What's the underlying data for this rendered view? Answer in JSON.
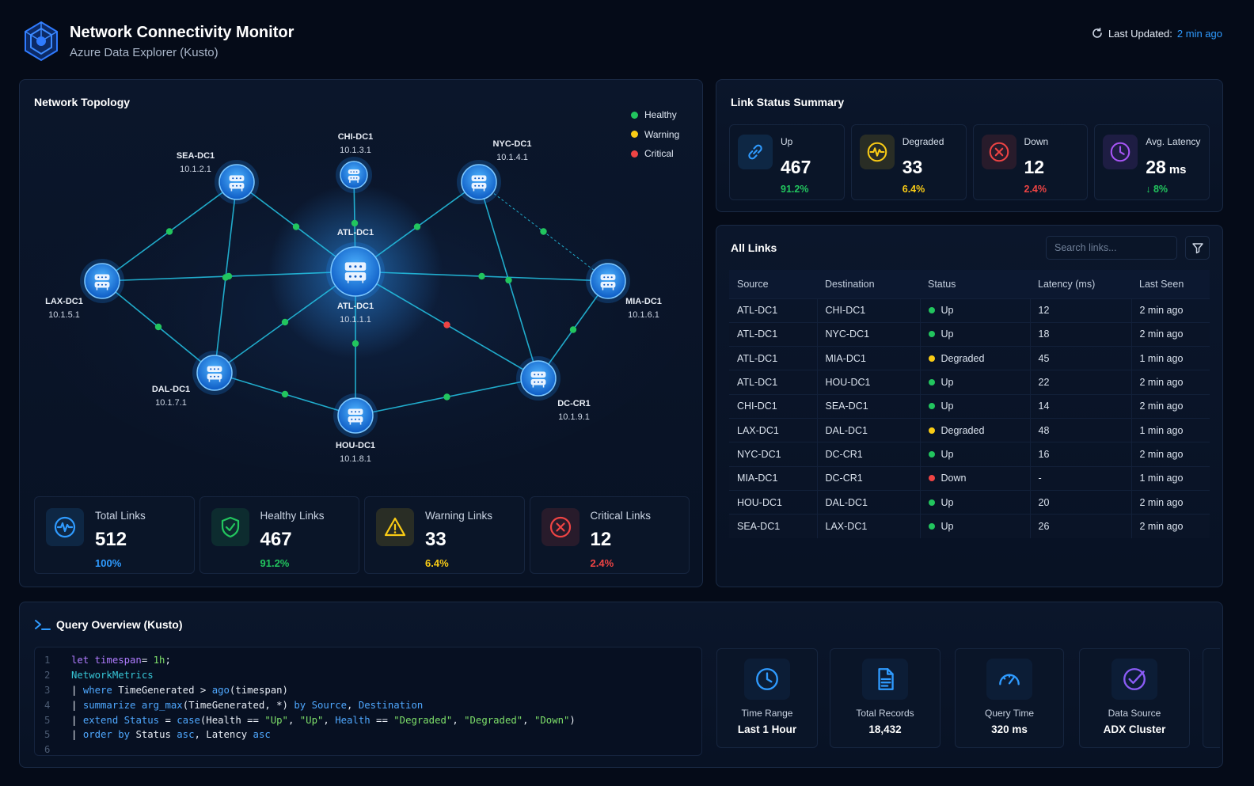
{
  "header": {
    "title": "Network Connectivity Monitor",
    "subtitle": "Azure Data Explorer (Kusto)",
    "last_updated_label": "Last Updated:",
    "last_updated_value": "2 min ago"
  },
  "topology": {
    "title": "Network Topology",
    "legend": [
      {
        "label": "Healthy",
        "color": "#22c55e"
      },
      {
        "label": "Warning",
        "color": "#facc15"
      },
      {
        "label": "Critical",
        "color": "#ef4444"
      }
    ],
    "nodes": [
      {
        "id": "ATL",
        "name": "ATL-DC1",
        "ip": "10.1.1.1"
      },
      {
        "id": "CHI",
        "name": "CHI-DC1",
        "ip": "10.1.3.1"
      },
      {
        "id": "SEA",
        "name": "SEA-DC1",
        "ip": "10.1.2.1"
      },
      {
        "id": "NYC",
        "name": "NYC-DC1",
        "ip": "10.1.4.1"
      },
      {
        "id": "LAX",
        "name": "LAX-DC1",
        "ip": "10.1.5.1"
      },
      {
        "id": "MIA",
        "name": "MIA-DC1",
        "ip": "10.1.6.1"
      },
      {
        "id": "DAL",
        "name": "DAL-DC1",
        "ip": "10.1.7.1"
      },
      {
        "id": "HOU",
        "name": "HOU-DC1",
        "ip": "10.1.8.1"
      },
      {
        "id": "DCR",
        "name": "DC-CR1",
        "ip": "10.1.9.1"
      }
    ],
    "links": [
      {
        "from": "ATL",
        "to": "CHI",
        "status": "healthy"
      },
      {
        "from": "ATL",
        "to": "SEA",
        "status": "healthy"
      },
      {
        "from": "ATL",
        "to": "NYC",
        "status": "healthy"
      },
      {
        "from": "ATL",
        "to": "LAX",
        "status": "healthy"
      },
      {
        "from": "ATL",
        "to": "MIA",
        "status": "healthy"
      },
      {
        "from": "ATL",
        "to": "DAL",
        "status": "healthy"
      },
      {
        "from": "ATL",
        "to": "HOU",
        "status": "healthy"
      },
      {
        "from": "ATL",
        "to": "DCR",
        "status": "critical"
      },
      {
        "from": "SEA",
        "to": "LAX",
        "status": "healthy"
      },
      {
        "from": "SEA",
        "to": "DAL",
        "status": "healthy"
      },
      {
        "from": "NYC",
        "to": "MIA",
        "status": "dashed"
      },
      {
        "from": "NYC",
        "to": "DCR",
        "status": "healthy"
      },
      {
        "from": "LAX",
        "to": "DAL",
        "status": "healthy"
      },
      {
        "from": "MIA",
        "to": "DCR",
        "status": "healthy"
      },
      {
        "from": "DAL",
        "to": "HOU",
        "status": "healthy"
      },
      {
        "from": "HOU",
        "to": "DCR",
        "status": "healthy"
      }
    ],
    "stats": [
      {
        "label": "Total Links",
        "value": "512",
        "pct": "100%",
        "color": "#2f9bff",
        "icon": "pulse-icon"
      },
      {
        "label": "Healthy Links",
        "value": "467",
        "pct": "91.2%",
        "color": "#22c55e",
        "icon": "shield-check-icon"
      },
      {
        "label": "Warning Links",
        "value": "33",
        "pct": "6.4%",
        "color": "#facc15",
        "icon": "warning-icon"
      },
      {
        "label": "Critical Links",
        "value": "12",
        "pct": "2.4%",
        "color": "#ef4444",
        "icon": "x-circle-icon"
      }
    ]
  },
  "link_summary": {
    "title": "Link Status Summary",
    "cards": [
      {
        "label": "Up",
        "value": "467",
        "unit": "",
        "pct": "91.2%",
        "color": "#22c55e",
        "icon": "link-icon"
      },
      {
        "label": "Degraded",
        "value": "33",
        "unit": "",
        "pct": "6.4%",
        "color": "#facc15",
        "icon": "pulse-icon"
      },
      {
        "label": "Down",
        "value": "12",
        "unit": "",
        "pct": "2.4%",
        "color": "#ef4444",
        "icon": "x-circle-icon"
      },
      {
        "label": "Avg. Latency",
        "value": "28",
        "unit": "ms",
        "pct": "↓ 8%",
        "color": "#22c55e",
        "icon": "clock-icon"
      }
    ]
  },
  "all_links": {
    "title": "All Links",
    "search_placeholder": "Search links...",
    "columns": [
      "Source",
      "Destination",
      "Status",
      "Latency (ms)",
      "Last Seen"
    ],
    "rows": [
      {
        "source": "ATL-DC1",
        "destination": "CHI-DC1",
        "status": "Up",
        "latency": "12",
        "last_seen": "2 min ago"
      },
      {
        "source": "ATL-DC1",
        "destination": "NYC-DC1",
        "status": "Up",
        "latency": "18",
        "last_seen": "2 min ago"
      },
      {
        "source": "ATL-DC1",
        "destination": "MIA-DC1",
        "status": "Degraded",
        "latency": "45",
        "last_seen": "1 min ago"
      },
      {
        "source": "ATL-DC1",
        "destination": "HOU-DC1",
        "status": "Up",
        "latency": "22",
        "last_seen": "2 min ago"
      },
      {
        "source": "CHI-DC1",
        "destination": "SEA-DC1",
        "status": "Up",
        "latency": "14",
        "last_seen": "2 min ago"
      },
      {
        "source": "LAX-DC1",
        "destination": "DAL-DC1",
        "status": "Degraded",
        "latency": "48",
        "last_seen": "1 min ago"
      },
      {
        "source": "NYC-DC1",
        "destination": "DC-CR1",
        "status": "Up",
        "latency": "16",
        "last_seen": "2 min ago"
      },
      {
        "source": "MIA-DC1",
        "destination": "DC-CR1",
        "status": "Down",
        "latency": "-",
        "last_seen": "1 min ago"
      },
      {
        "source": "HOU-DC1",
        "destination": "DAL-DC1",
        "status": "Up",
        "latency": "20",
        "last_seen": "2 min ago"
      },
      {
        "source": "SEA-DC1",
        "destination": "LAX-DC1",
        "status": "Up",
        "latency": "26",
        "last_seen": "2 min ago"
      }
    ],
    "status_colors": {
      "Up": "#22c55e",
      "Degraded": "#facc15",
      "Down": "#ef4444"
    }
  },
  "query": {
    "title": "Query Overview (Kusto)",
    "code_lines": [
      [
        {
          "t": "let timespan",
          "c": "kw"
        },
        {
          "t": "= ",
          "c": "plain"
        },
        {
          "t": "1h",
          "c": "str"
        },
        {
          "t": ";",
          "c": "plain"
        }
      ],
      [
        {
          "t": "NetworkMetrics",
          "c": "tbl"
        }
      ],
      [
        {
          "t": "| ",
          "c": "plain"
        },
        {
          "t": "where",
          "c": "fn"
        },
        {
          "t": " TimeGenerated > ",
          "c": "plain"
        },
        {
          "t": "ago",
          "c": "fn"
        },
        {
          "t": "(timespan)",
          "c": "plain"
        }
      ],
      [
        {
          "t": "| ",
          "c": "plain"
        },
        {
          "t": "summarize",
          "c": "fn"
        },
        {
          "t": " ",
          "c": "plain"
        },
        {
          "t": "arg_max",
          "c": "fn"
        },
        {
          "t": "(TimeGenerated, *) ",
          "c": "plain"
        },
        {
          "t": "by",
          "c": "fn"
        },
        {
          "t": " ",
          "c": "plain"
        },
        {
          "t": "Source",
          "c": "fn"
        },
        {
          "t": ", ",
          "c": "plain"
        },
        {
          "t": "Destination",
          "c": "fn"
        }
      ],
      [
        {
          "t": "| ",
          "c": "plain"
        },
        {
          "t": "extend",
          "c": "fn"
        },
        {
          "t": " ",
          "c": "plain"
        },
        {
          "t": "Status",
          "c": "fn"
        },
        {
          "t": " = ",
          "c": "plain"
        },
        {
          "t": "case",
          "c": "fn"
        },
        {
          "t": "(Health == ",
          "c": "plain"
        },
        {
          "t": "\"Up\"",
          "c": "str"
        },
        {
          "t": ", ",
          "c": "plain"
        },
        {
          "t": "\"Up\"",
          "c": "str"
        },
        {
          "t": ", ",
          "c": "plain"
        },
        {
          "t": "Health",
          "c": "fn"
        },
        {
          "t": " == ",
          "c": "plain"
        },
        {
          "t": "\"Degraded\"",
          "c": "str"
        },
        {
          "t": ", ",
          "c": "plain"
        },
        {
          "t": "\"Degraded\"",
          "c": "str"
        },
        {
          "t": ", ",
          "c": "plain"
        },
        {
          "t": "\"Down\"",
          "c": "str"
        },
        {
          "t": ")",
          "c": "plain"
        }
      ],
      [
        {
          "t": "| ",
          "c": "plain"
        },
        {
          "t": "order by",
          "c": "fn"
        },
        {
          "t": " Status ",
          "c": "plain"
        },
        {
          "t": "asc",
          "c": "fn"
        },
        {
          "t": ", Latency ",
          "c": "plain"
        },
        {
          "t": "asc",
          "c": "fn"
        }
      ],
      []
    ],
    "line_numbers": [
      "1",
      "2",
      "3",
      "4",
      "5",
      "5",
      "6"
    ],
    "meta": [
      {
        "label": "Time Range",
        "value": "Last 1 Hour",
        "icon": "clock-icon",
        "color": "#2f9bff"
      },
      {
        "label": "Total Records",
        "value": "18,432",
        "icon": "document-icon",
        "color": "#2f9bff"
      },
      {
        "label": "Query Time",
        "value": "320 ms",
        "icon": "gauge-icon",
        "color": "#2f9bff"
      },
      {
        "label": "Data Source",
        "value": "ADX Cluster",
        "icon": "badge-check-icon",
        "color": "#8b5cf6"
      }
    ]
  }
}
